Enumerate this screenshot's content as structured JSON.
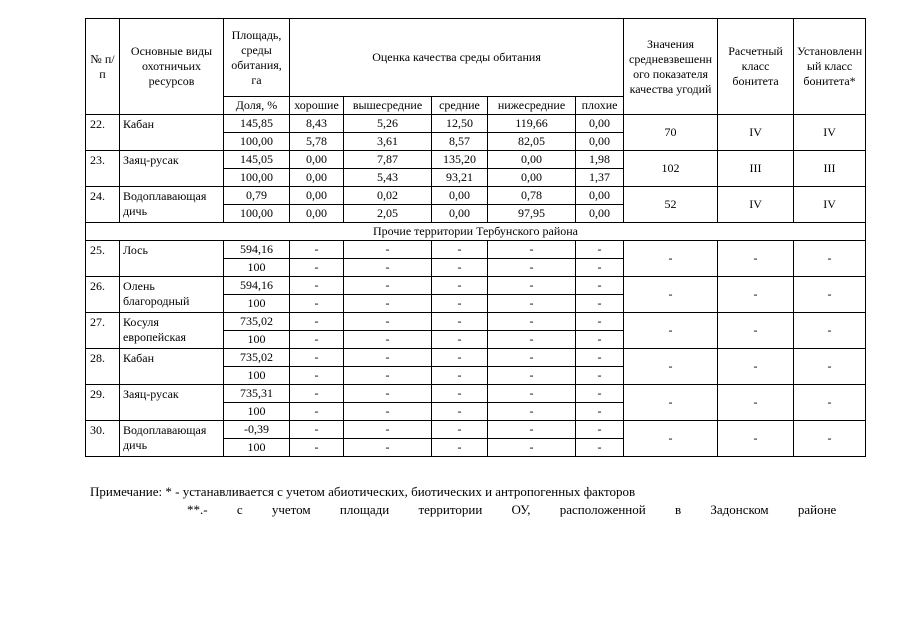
{
  "table": {
    "header": {
      "num": "№ п/п",
      "species": "Основные виды охотничьих ресурсов",
      "area": "Площадь, среды обитания, га",
      "share": "Доля, %",
      "quality": "Оценка качества среды обитания",
      "quality_levels": [
        "хорошие",
        "вышесредние",
        "средние",
        "нижесредние",
        "плохие"
      ],
      "weighted_value": "Значения средневзвешенн ого показателя качества угодий",
      "calc_class": "Расчетный класс бонитета",
      "est_class": "Установленн ый класс бонитета*"
    },
    "rows": [
      {
        "num": "22.",
        "species": "Кабан",
        "area": "145,85",
        "share": "100,00",
        "quality_area": [
          "8,43",
          "5,26",
          "12,50",
          "119,66",
          "0,00"
        ],
        "quality_share": [
          "5,78",
          "3,61",
          "8,57",
          "82,05",
          "0,00"
        ],
        "value": "70",
        "calc": "IV",
        "est": "IV"
      },
      {
        "num": "23.",
        "species": "Заяц-русак",
        "area": "145,05",
        "share": "100,00",
        "quality_area": [
          "0,00",
          "7,87",
          "135,20",
          "0,00",
          "1,98"
        ],
        "quality_share": [
          "0,00",
          "5,43",
          "93,21",
          "0,00",
          "1,37"
        ],
        "value": "102",
        "calc": "III",
        "est": "III"
      },
      {
        "num": "24.",
        "species": "Водоплавающая дичь",
        "area": "0,79",
        "share": "100,00",
        "quality_area": [
          "0,00",
          "0,02",
          "0,00",
          "0,78",
          "0,00"
        ],
        "quality_share": [
          "0,00",
          "2,05",
          "0,00",
          "97,95",
          "0,00"
        ],
        "value": "52",
        "calc": "IV",
        "est": "IV"
      },
      {
        "section": "Прочие территории Тербунского района"
      },
      {
        "num": "25.",
        "species": "Лось",
        "area": "594,16",
        "share": "100",
        "quality_area": [
          "-",
          "-",
          "-",
          "-",
          "-"
        ],
        "quality_share": [
          "-",
          "-",
          "-",
          "-",
          "-"
        ],
        "value": "-",
        "calc": "-",
        "est": "-"
      },
      {
        "num": "26.",
        "species": "Олень благородный",
        "area": "594,16",
        "share": "100",
        "quality_area": [
          "-",
          "-",
          "-",
          "-",
          "-"
        ],
        "quality_share": [
          "-",
          "-",
          "-",
          "-",
          "-"
        ],
        "value": "-",
        "calc": "-",
        "est": "-"
      },
      {
        "num": "27.",
        "species": "Косуля европейская",
        "area": "735,02",
        "share": "100",
        "quality_area": [
          "-",
          "-",
          "-",
          "-",
          "-"
        ],
        "quality_share": [
          "-",
          "-",
          "-",
          "-",
          "-"
        ],
        "value": "-",
        "calc": "-",
        "est": "-"
      },
      {
        "num": "28.",
        "species": "Кабан",
        "area": "735,02",
        "share": "100",
        "quality_area": [
          "-",
          "-",
          "-",
          "-",
          "-"
        ],
        "quality_share": [
          "-",
          "-",
          "-",
          "-",
          "-"
        ],
        "value": "-",
        "calc": "-",
        "est": "-"
      },
      {
        "num": "29.",
        "species": "Заяц-русак",
        "area": "735,31",
        "share": "100",
        "quality_area": [
          "-",
          "-",
          "-",
          "-",
          "-"
        ],
        "quality_share": [
          "-",
          "-",
          "-",
          "-",
          "-"
        ],
        "value": "-",
        "calc": "-",
        "est": "-"
      },
      {
        "num": "30.",
        "species": "Водоплавающая дичь",
        "area": "-0,39",
        "share": "100",
        "quality_area": [
          "-",
          "-",
          "-",
          "-",
          "-"
        ],
        "quality_share": [
          "-",
          "-",
          "-",
          "-",
          "-"
        ],
        "value": "-",
        "calc": "-",
        "est": "-"
      }
    ]
  },
  "note": {
    "line1": "Примечание: * - устанавливается с учетом абиотических, биотических и антропогенных факторов",
    "line2": "**.- с учетом площади территории ОУ, расположенной в Задонском районе"
  }
}
